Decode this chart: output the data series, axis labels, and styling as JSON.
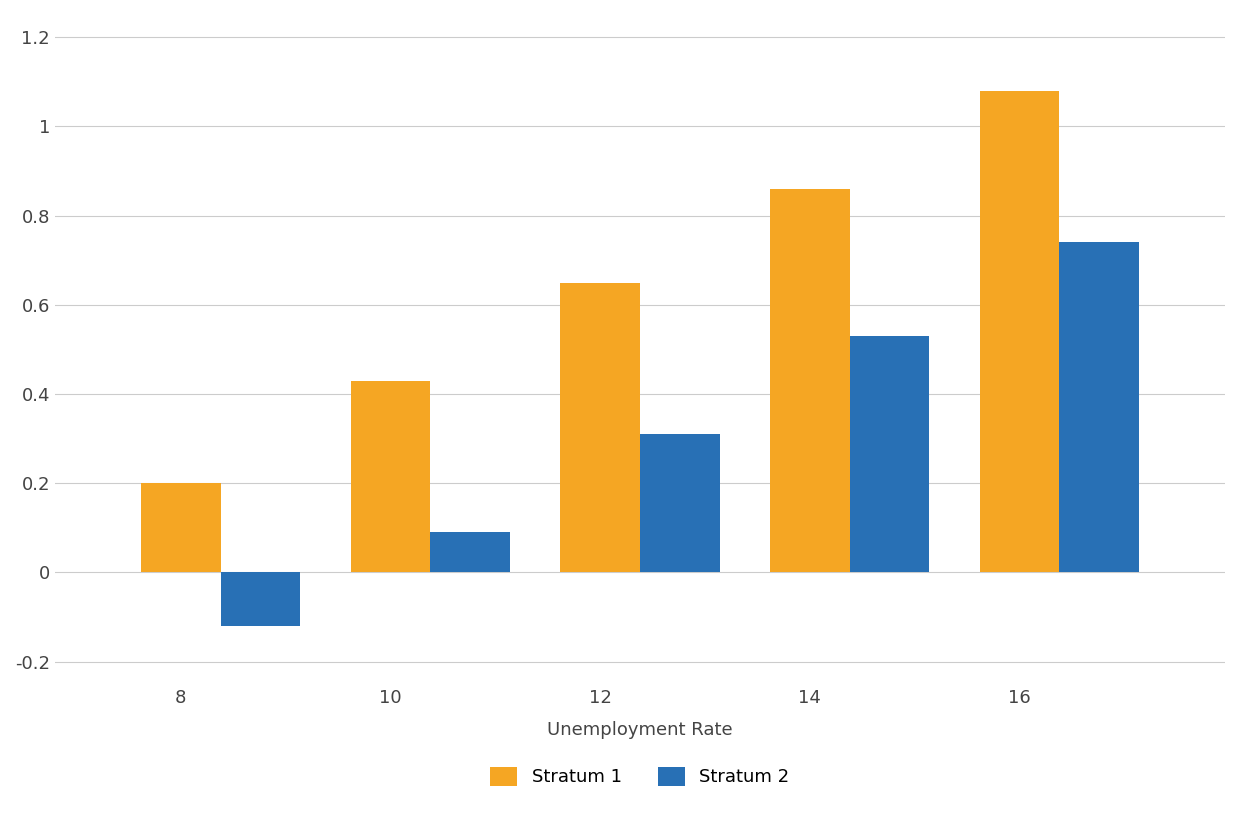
{
  "categories": [
    8,
    10,
    12,
    14,
    16
  ],
  "stratum1": [
    0.2,
    0.43,
    0.65,
    0.86,
    1.08
  ],
  "stratum2": [
    -0.12,
    0.09,
    0.31,
    0.53,
    0.74
  ],
  "stratum1_color": "#F5A623",
  "stratum2_color": "#2870B5",
  "xlabel": "Unemployment Rate",
  "ylabel": "",
  "ylim": [
    -0.25,
    1.25
  ],
  "yticks": [
    -0.2,
    0,
    0.2,
    0.4,
    0.6,
    0.8,
    1.0,
    1.2
  ],
  "legend_labels": [
    "Stratum 1",
    "Stratum 2"
  ],
  "bar_width": 0.38,
  "background_color": "#ffffff",
  "grid_color": "#cccccc",
  "title": ""
}
